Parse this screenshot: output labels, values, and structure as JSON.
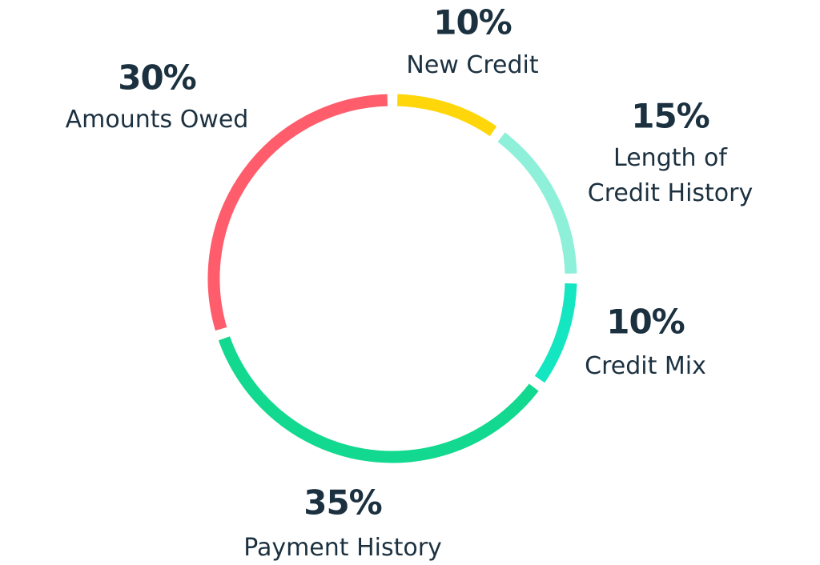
{
  "chart_data": {
    "type": "pie",
    "categories": [
      "New Credit",
      "Length of Credit History",
      "Credit Mix",
      "Payment History",
      "Amounts Owed"
    ],
    "values": [
      10,
      15,
      10,
      35,
      30
    ],
    "value_labels": [
      "10%",
      "15%",
      "10%",
      "35%",
      "30%"
    ],
    "colors": [
      "#ffd60a",
      "#8ef0d9",
      "#14e6c1",
      "#12d98f",
      "#ff5d6c"
    ]
  }
}
